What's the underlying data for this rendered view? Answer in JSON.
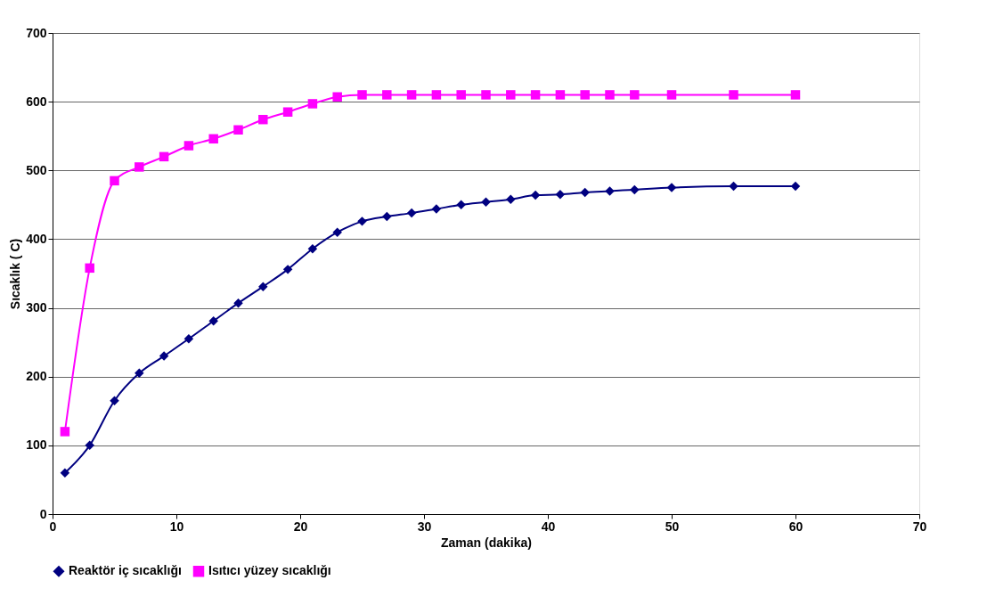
{
  "chart_data": {
    "type": "line",
    "xlabel": "Zaman (dakika)",
    "ylabel": "Sıcaklık ( C)",
    "x": [
      1,
      3,
      5,
      7,
      9,
      11,
      13,
      15,
      17,
      19,
      21,
      23,
      25,
      27,
      29,
      31,
      33,
      35,
      37,
      39,
      41,
      43,
      45,
      47,
      50,
      55,
      60
    ],
    "series": [
      {
        "name": "Reaktör iç sıcaklığı",
        "color": "#000080",
        "marker": "diamond",
        "values": [
          60,
          100,
          165,
          205,
          230,
          255,
          281,
          307,
          331,
          356,
          386,
          410,
          426,
          433,
          438,
          444,
          450,
          454,
          458,
          464,
          465,
          468,
          470,
          472,
          475,
          477,
          477
        ]
      },
      {
        "name": "Isıtıcı yüzey sıcaklığı",
        "color": "#ff00ff",
        "marker": "square",
        "values": [
          120,
          358,
          485,
          505,
          520,
          536,
          546,
          559,
          574,
          585,
          597,
          607,
          610,
          610,
          610,
          610,
          610,
          610,
          610,
          610,
          610,
          610,
          610,
          610,
          610,
          610,
          610
        ]
      }
    ],
    "xlim": [
      0,
      70
    ],
    "xticks": [
      0,
      10,
      20,
      30,
      40,
      50,
      60,
      70
    ],
    "ylim": [
      0,
      700
    ],
    "yticks": [
      0,
      100,
      200,
      300,
      400,
      500,
      600,
      700
    ],
    "grid": "y",
    "legend": "bottom",
    "line_style": "solid"
  }
}
